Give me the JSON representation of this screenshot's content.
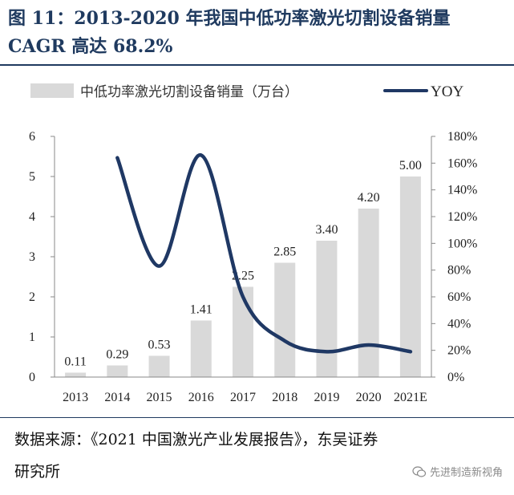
{
  "figure": {
    "title_line1": "图 11：2013-2020 年我国中低功率激光切割设备销量",
    "title_line2": "CAGR 高达 68.2%"
  },
  "source": {
    "text_line1": "数据来源：《2021 中国激光产业发展报告》，东吴证券",
    "text_line2": "研究所"
  },
  "watermark": {
    "text": "先进制造新视角",
    "icon": "wechat-icon"
  },
  "chart_data": {
    "type": "bar+line",
    "categories": [
      "2013",
      "2014",
      "2015",
      "2016",
      "2017",
      "2018",
      "2019",
      "2020",
      "2021E"
    ],
    "series": [
      {
        "name": "中低功率激光切割设备销量（万台）",
        "type": "bar",
        "axis": "left",
        "color": "#d9d9d9",
        "values": [
          0.11,
          0.29,
          0.53,
          1.41,
          2.25,
          2.85,
          3.4,
          4.2,
          5.0
        ],
        "labels": [
          "0.11",
          "0.29",
          "0.53",
          "1.41",
          "2.25",
          "2.85",
          "3.40",
          "4.20",
          "5.00"
        ]
      },
      {
        "name": "YOY",
        "type": "line",
        "axis": "right",
        "color": "#1f3864",
        "values": [
          null,
          1.64,
          0.83,
          1.66,
          0.6,
          0.27,
          0.19,
          0.24,
          0.19
        ]
      }
    ],
    "y_left": {
      "lim": [
        0,
        6
      ],
      "ticks": [
        "0",
        "1",
        "2",
        "3",
        "4",
        "5",
        "6"
      ]
    },
    "y_right": {
      "lim": [
        0,
        1.8
      ],
      "ticks": [
        "0%",
        "20%",
        "40%",
        "60%",
        "80%",
        "100%",
        "120%",
        "140%",
        "160%",
        "180%"
      ]
    },
    "legend": {
      "position": "top"
    },
    "grid": false
  }
}
